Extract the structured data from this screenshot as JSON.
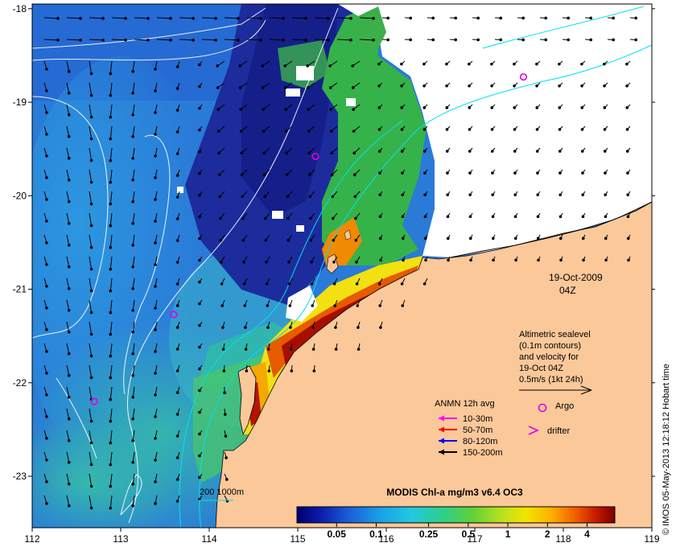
{
  "map": {
    "lon_range": [
      112,
      119
    ],
    "lat_range": [
      -23.55,
      -17.95
    ],
    "lon_ticks": [
      "112",
      "113",
      "114",
      "115",
      "116",
      "117",
      "118",
      "119"
    ],
    "lat_ticks": [
      "-18",
      "-19",
      "-20",
      "-21",
      "-22",
      "-23"
    ],
    "colors": {
      "ocean_deep": "#1a2a9a",
      "ocean": "#2a6ed8",
      "shelf": "#26a8dc",
      "land": "#fbc89a",
      "cloud": "#ffffff",
      "contour": "#ffffff",
      "isobath": "#00e0f0",
      "argo": "#e000e0"
    }
  },
  "date": {
    "date_label": "19-Oct-2009",
    "time_label": "04Z"
  },
  "altimetry_note": {
    "lines": [
      "Altimetric sealevel",
      "(0.1m contours)",
      "and velocity for",
      "19-Oct 04Z",
      "0.5m/s (1kt 24h)"
    ]
  },
  "legend": {
    "title": "ANMN 12h avg",
    "items": [
      {
        "label": "10-30m",
        "color": "#ff00ff"
      },
      {
        "label": "50-70m",
        "color": "#ff0000"
      },
      {
        "label": "80-120m",
        "color": "#0000ff"
      },
      {
        "label": "150-200m",
        "color": "#000000"
      }
    ],
    "argo_label": "Argo",
    "drifter_label": "drifter"
  },
  "isobath_label": "200  1000m",
  "colorbar": {
    "title": "MODIS Chl-a mg/m3 v6.4 OC3",
    "tick_labels": [
      "0.05",
      "0.1",
      "0.25",
      "0.5",
      "1",
      "2",
      "4"
    ],
    "tick_values": [
      0.05,
      0.1,
      0.25,
      0.5,
      1,
      2,
      4
    ],
    "range": [
      0.025,
      6.5
    ],
    "scale": "log"
  },
  "credit": "© IMOS 05-May-2013 12:18:12 Hobart time",
  "argo_floats": [
    {
      "lon": 117.55,
      "lat": -18.73
    },
    {
      "lon": 115.2,
      "lat": -19.58
    },
    {
      "lon": 113.6,
      "lat": -21.27
    },
    {
      "lon": 112.7,
      "lat": -22.2
    }
  ]
}
